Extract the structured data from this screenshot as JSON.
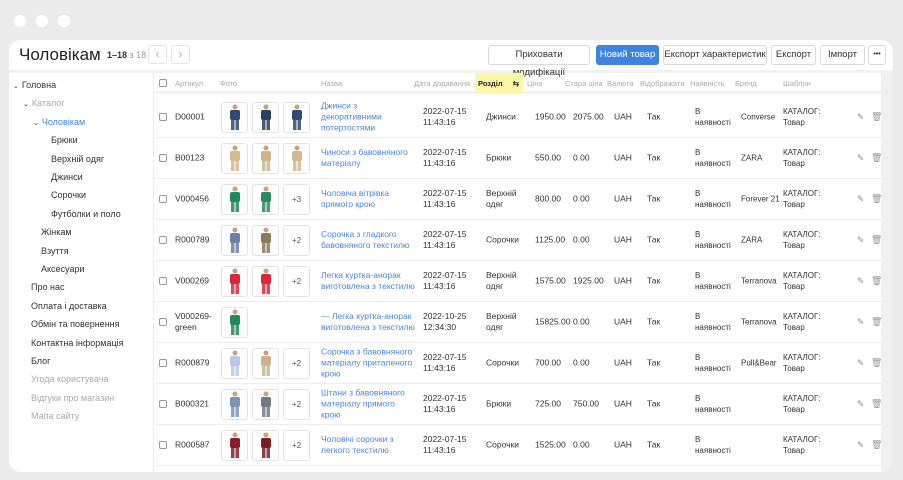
{
  "header": {
    "title": "Чоловікам",
    "range": "1–18",
    "of": "з 18",
    "buttons": {
      "hide_mods": "Приховати модифікації",
      "new_item": "Новий товар",
      "export_specs": "Експорт характеристик",
      "export": "Експорт",
      "import": "Імпорт",
      "more": "•••"
    }
  },
  "sidebar": [
    {
      "label": "Головна",
      "level": 0,
      "expanded": true,
      "style": "normal"
    },
    {
      "label": "Каталог",
      "level": 1,
      "expanded": true,
      "style": "muted"
    },
    {
      "label": "Чоловікам",
      "level": 2,
      "expanded": true,
      "style": "active"
    },
    {
      "label": "Брюки",
      "level": 3,
      "style": "normal"
    },
    {
      "label": "Верхній одяг",
      "level": 3,
      "style": "normal"
    },
    {
      "label": "Джинси",
      "level": 3,
      "style": "normal"
    },
    {
      "label": "Сорочки",
      "level": 3,
      "style": "normal"
    },
    {
      "label": "Футболки и поло",
      "level": 3,
      "style": "normal"
    },
    {
      "label": "Жінкам",
      "level": 2,
      "style": "normal"
    },
    {
      "label": "Взуття",
      "level": 2,
      "style": "normal"
    },
    {
      "label": "Аксесуари",
      "level": 2,
      "style": "normal"
    },
    {
      "label": "Про нас",
      "level": 1,
      "style": "normal"
    },
    {
      "label": "Оплата і доставка",
      "level": 1,
      "style": "normal"
    },
    {
      "label": "Обмін та повернення",
      "level": 1,
      "style": "normal"
    },
    {
      "label": "Контактна інформація",
      "level": 1,
      "style": "normal"
    },
    {
      "label": "Блог",
      "level": 1,
      "style": "normal"
    },
    {
      "label": "Угода користувача",
      "level": 1,
      "style": "muted"
    },
    {
      "label": "Відгуки про магазин",
      "level": 1,
      "style": "muted"
    },
    {
      "label": "Мапа сайту",
      "level": 1,
      "style": "muted"
    }
  ],
  "columns": {
    "sku": "Артикул",
    "photo": "Фото",
    "name": "Назва",
    "date": "Дата додавання",
    "section": "Розділ",
    "price": "Ціна",
    "old_price": "Стара ціна",
    "currency": "Валюта",
    "display": "Відображати",
    "availability": "Наявність",
    "brand": "Бренд",
    "template": "Шаблон"
  },
  "colors": {
    "accent": "#3d83e0",
    "link": "#4a86d8",
    "sorted_header": "#fdf7a8"
  },
  "rows": [
    {
      "sku": "D00001",
      "photos": [
        "#2f4a6e",
        "#2b3f5e",
        "#2f4a6e"
      ],
      "more": "",
      "name": "Джинси з декоративними потертостями",
      "date": "2022-07-15",
      "time": "11:43:16",
      "section": "Джинси",
      "price": "1950.00",
      "old_price": "2075.00",
      "currency": "UAH",
      "display": "Так",
      "availability": "В наявності",
      "brand": "Converse",
      "template": "КАТАЛОГ: Товар"
    },
    {
      "sku": "B00123",
      "photos": [
        "#d7b98a",
        "#cdb48a",
        "#d2b88c"
      ],
      "more": "",
      "name": "Чиноси з бавовняного матеріалу",
      "date": "2022-07-15",
      "time": "11:43:16",
      "section": "Брюки",
      "price": "550.00",
      "old_price": "0.00",
      "currency": "UAH",
      "display": "Так",
      "availability": "В наявності",
      "brand": "ZARA",
      "template": "КАТАЛОГ: Товар"
    },
    {
      "sku": "V000456",
      "photos": [
        "#1f8a5a",
        "#2a8a60"
      ],
      "more": "+3",
      "name": "Чоловіча вітрівка прямого крою",
      "date": "2022-07-15",
      "time": "11:43:16",
      "section": "Верхній одяг",
      "price": "800.00",
      "old_price": "0.00",
      "currency": "UAH",
      "display": "Так",
      "availability": "В наявності",
      "brand": "Forever 21",
      "template": "КАТАЛОГ: Товар"
    },
    {
      "sku": "R000789",
      "photos": [
        "#6b7fa8",
        "#8a7a55"
      ],
      "more": "+2",
      "name": "Сорочка з гладкого бавовняного текстилю",
      "date": "2022-07-15",
      "time": "11:43:16",
      "section": "Сорочки",
      "price": "1125.00",
      "old_price": "0.00",
      "currency": "UAH",
      "display": "Так",
      "availability": "В наявності",
      "brand": "ZARA",
      "template": "КАТАЛОГ: Товар"
    },
    {
      "sku": "V000269",
      "photos": [
        "#d8293a",
        "#d8293a"
      ],
      "more": "+2",
      "name": "Легка куртка-анорак виготовлена з текстилю",
      "date": "2022-07-15",
      "time": "11:43:16",
      "section": "Верхній одяг",
      "price": "1575.00",
      "old_price": "1925.00",
      "currency": "UAH",
      "display": "Так",
      "availability": "В наявності",
      "brand": "Terranova",
      "template": "КАТАЛОГ: Товар"
    },
    {
      "sku": "V000269-green",
      "photos": [
        "#1f8a5a"
      ],
      "more": "",
      "name": "— Легка куртка-анорак виготовлена з текстилю",
      "date": "2022-10-25",
      "time": "12:34:30",
      "section": "Верхній одяг",
      "price": "15825.00",
      "old_price": "0.00",
      "currency": "UAH",
      "display": "Так",
      "availability": "В наявності",
      "brand": "Terranova",
      "template": "КАТАЛОГ: Товар"
    },
    {
      "sku": "R000879",
      "photos": [
        "#b9c8e6",
        "#c9b48e"
      ],
      "more": "+2",
      "name": "Сорочка з бавовняного матеріалу приталеного крою",
      "date": "2022-07-15",
      "time": "11:43:16",
      "section": "Сорочки",
      "price": "700.00",
      "old_price": "0.00",
      "currency": "UAH",
      "display": "Так",
      "availability": "В наявності",
      "brand": "Pull&Bear",
      "template": "КАТАЛОГ: Товар"
    },
    {
      "sku": "B000321",
      "photos": [
        "#7d93b8",
        "#707a88"
      ],
      "more": "+2",
      "name": "Штани з бавовняного матеріалу прямого крою",
      "date": "2022-07-15",
      "time": "11:43:16",
      "section": "Брюки",
      "price": "725.00",
      "old_price": "750.00",
      "currency": "UAH",
      "display": "Так",
      "availability": "В наявності",
      "brand": "",
      "template": "КАТАЛОГ: Товар"
    },
    {
      "sku": "R000587",
      "photos": [
        "#8a1e28",
        "#7a1f28"
      ],
      "more": "+2",
      "name": "Чоловічі сорочки з легкого текстилю",
      "date": "2022-07-15",
      "time": "11:43:16",
      "section": "Сорочки",
      "price": "1525.00",
      "old_price": "0.00",
      "currency": "UAH",
      "display": "Так",
      "availability": "В наявності",
      "brand": "",
      "template": "КАТАЛОГ: Товар"
    }
  ]
}
